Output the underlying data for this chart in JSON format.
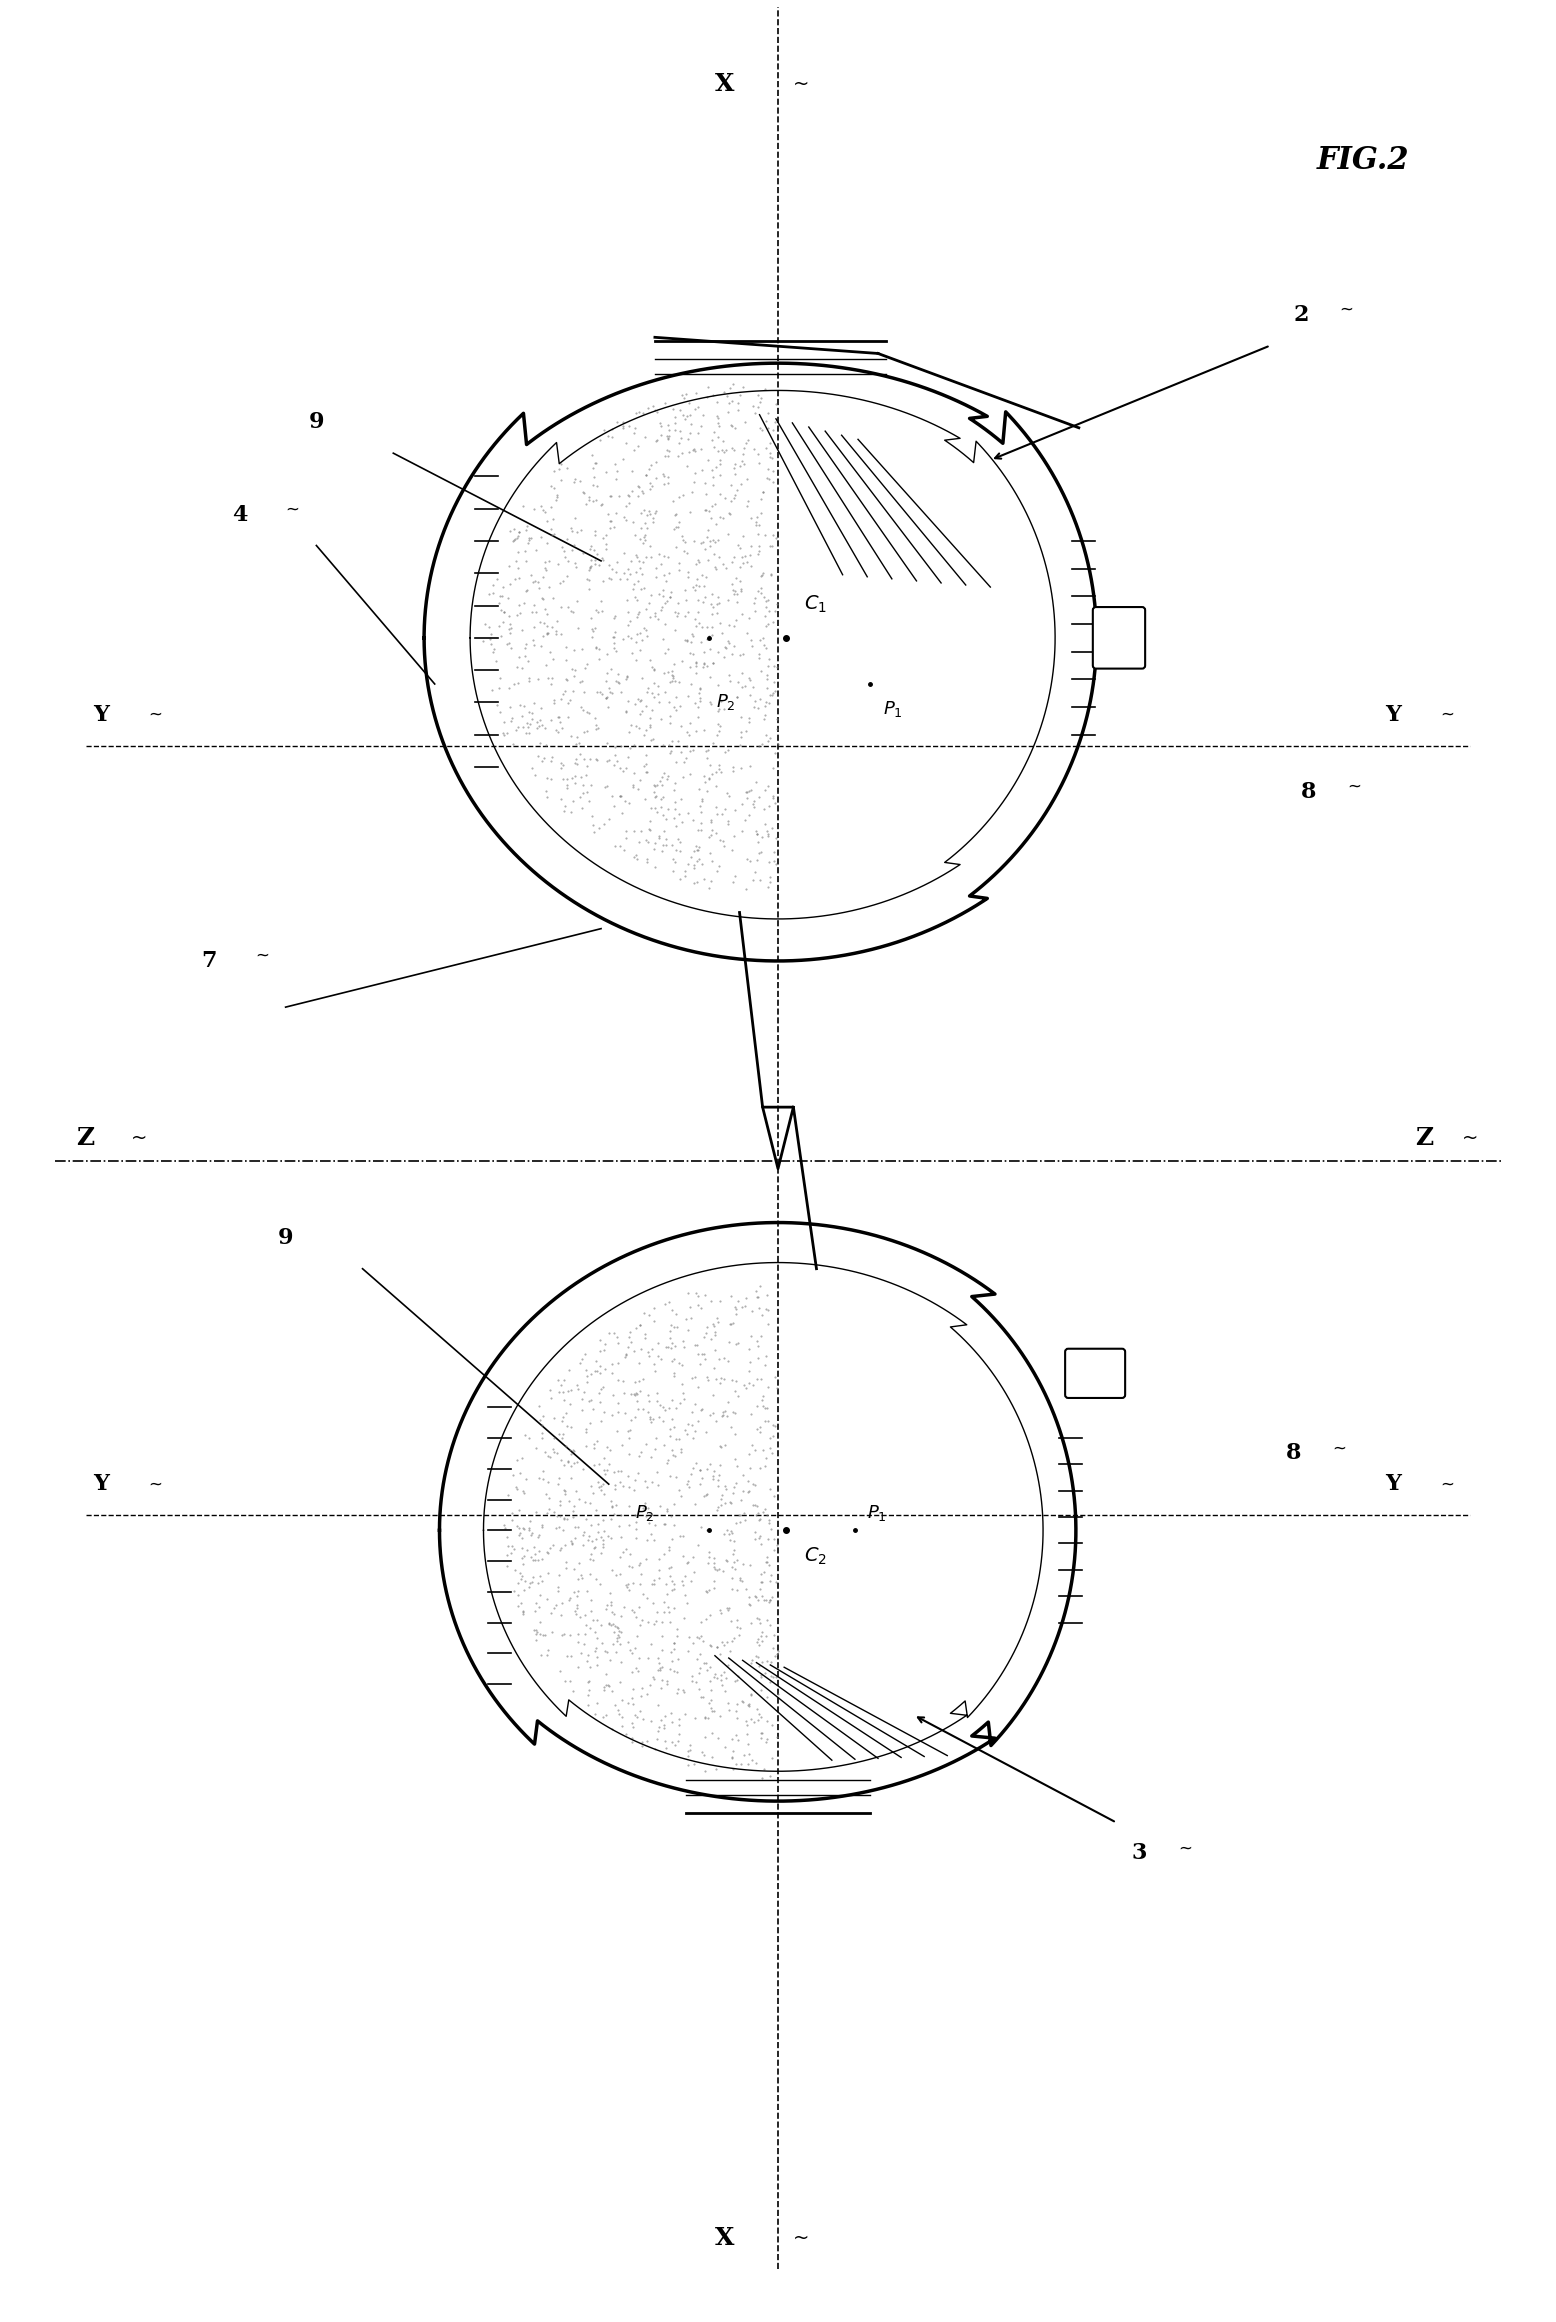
{
  "title": "FIG.2",
  "background_color": "#ffffff",
  "line_color": "#000000",
  "stipple_color": "#888888",
  "fig_width": 15.56,
  "fig_height": 23.22,
  "labels": {
    "X": "X",
    "Y": "Y",
    "Z": "Z",
    "fig": "FIG.2",
    "upper_lens_num": "2",
    "lower_lens_num": "3",
    "label_4": "4",
    "label_7": "7",
    "label_8_upper": "8",
    "label_8_lower": "8",
    "label_9_upper": "9",
    "label_9_lower": "9",
    "C1": "C₁",
    "C2": "C₂",
    "P1_upper": "P₁",
    "P2_upper": "P₂",
    "P1_lower": "P₁",
    "P2_lower": "P₂",
    "Y_upper_left": "Y",
    "Y_upper_right": "Y",
    "Y_lower_left": "Y",
    "Y_lower_right": "Y",
    "Z_left": "Z",
    "Z_right": "Z"
  }
}
